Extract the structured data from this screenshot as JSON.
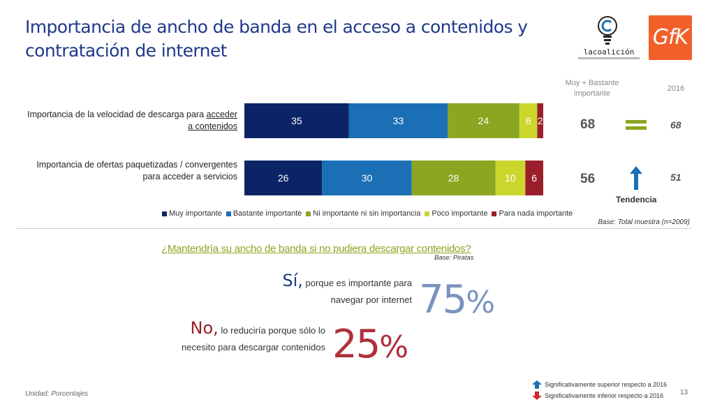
{
  "title_line1": "Importancia de ancho de banda en el acceso a contenidos y",
  "title_line2": "contratación de internet",
  "logos": {
    "coalicion_word": "lacoalición"
  },
  "chart_data": {
    "type": "bar",
    "orientation": "horizontal",
    "stacked": true,
    "categories": [
      "Importancia de la velocidad de descarga para acceder a contenidos",
      "Importancia de ofertas paquetizadas / convergentes para acceder a servicios"
    ],
    "series": [
      {
        "name": "Muy importante",
        "values": [
          35,
          26
        ],
        "color": "#0a2466"
      },
      {
        "name": "Bastante importante",
        "values": [
          33,
          30
        ],
        "color": "#1a6fb5"
      },
      {
        "name": "Ni importante ni sin importancia",
        "values": [
          24,
          28
        ],
        "color": "#8ba620"
      },
      {
        "name": "Poco importante",
        "values": [
          6,
          10
        ],
        "color": "#cbd62d"
      },
      {
        "name": "Para nada importante",
        "values": [
          2,
          6
        ],
        "color": "#9b1f2a"
      }
    ],
    "xlim": [
      0,
      100
    ],
    "legend": "bottom",
    "grid": false
  },
  "row_labels": {
    "row1_plain": "Importancia de la velocidad de descarga para ",
    "row1_underlined_a": "acceder",
    "row1_underlined_b": "a contenidos",
    "row2_line1": "Importancia de ofertas paquetizadas / convergentes",
    "row2_line2": "para acceder a servicios"
  },
  "side_table": {
    "head_top2_line1": "Muy + Bastante",
    "head_top2_line2": "importante",
    "head_year": "2016",
    "row1_top2": "68",
    "row1_2016": "68",
    "row2_top2": "56",
    "row2_2016": "51",
    "trend_label": "Tendencia"
  },
  "base_total": "Base: Total muestra (n=2009)",
  "question": "¿Mantendría su ancho de banda si no pudiera descargar contenidos?",
  "base_piratas": "Base: Piratas",
  "answer_yes": {
    "lead": "Sí,",
    "text_line1": "porque es importante para",
    "text_line2": "navegar por internet",
    "pct": "75",
    "symbol": "%"
  },
  "answer_no": {
    "lead": "No,",
    "text_line1": "lo reduciría porque sólo lo",
    "text_line2": "necesito para descargar contenidos",
    "pct": "25",
    "symbol": "%"
  },
  "footer": {
    "unidad": "Unidad: Porcentajes",
    "sig_up": "Significativamente superior respecto a 2016",
    "sig_down": "Significativamente inferior respecto a 2016",
    "page": "13"
  },
  "colors": {
    "title": "#1f3a8a",
    "accent_green": "#8ba620",
    "trend_up": "#1a6fb5",
    "trend_down": "#d0262d"
  }
}
